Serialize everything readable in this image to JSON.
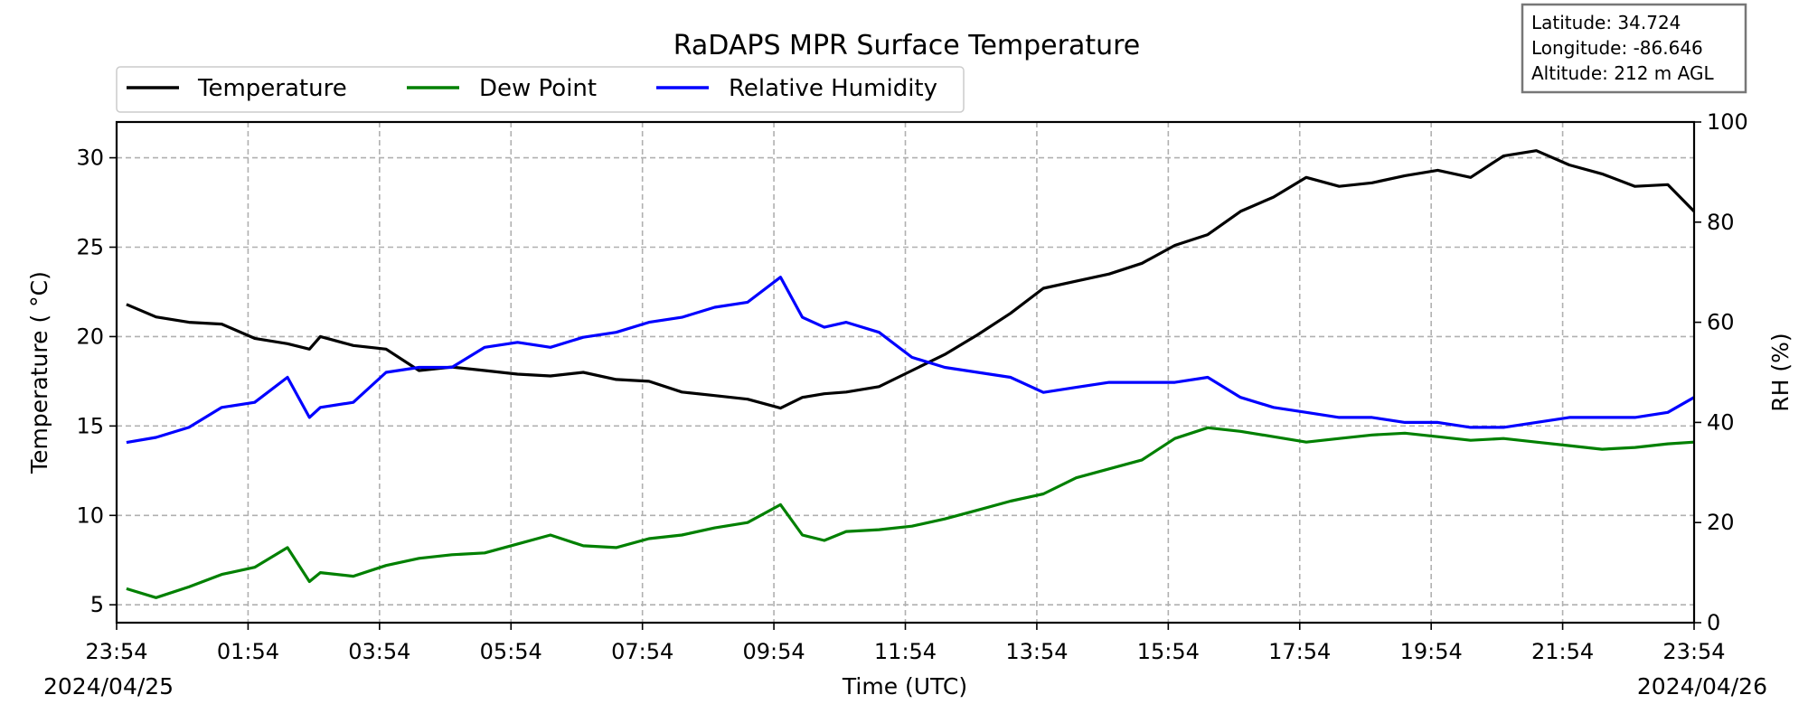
{
  "chart_data": {
    "type": "line",
    "title": "RaDAPS MPR Surface Temperature",
    "xlabel": "Time (UTC)",
    "ylabel_left": "Temperature (°C)",
    "ylabel_left_display": "Temperature ( °C)",
    "ylabel_right": "RH (%)",
    "x_range": [
      "2024-04-25 23:54",
      "2024-04-26 23:54"
    ],
    "x_ticks": [
      "23:54",
      "01:54",
      "03:54",
      "05:54",
      "07:54",
      "09:54",
      "11:54",
      "13:54",
      "15:54",
      "17:54",
      "19:54",
      "21:54",
      "23:54"
    ],
    "x_date_start": "2024/04/25",
    "x_date_end": "2024/04/26",
    "ylim_left": [
      4,
      32
    ],
    "yticks_left": [
      5,
      10,
      15,
      20,
      25,
      30
    ],
    "ylim_right": [
      0,
      100
    ],
    "yticks_right": [
      0,
      20,
      40,
      60,
      80,
      100
    ],
    "grid": true,
    "legend_placement": "top-left, above plot",
    "x": [
      "00:00",
      "00:30",
      "01:00",
      "01:30",
      "02:00",
      "02:30",
      "02:50",
      "03:00",
      "03:30",
      "04:00",
      "04:30",
      "05:00",
      "05:30",
      "06:00",
      "06:30",
      "07:00",
      "07:30",
      "08:00",
      "08:30",
      "09:00",
      "09:30",
      "10:00",
      "10:20",
      "10:40",
      "11:00",
      "11:30",
      "12:00",
      "12:30",
      "13:00",
      "13:30",
      "14:00",
      "14:30",
      "15:00",
      "15:30",
      "16:00",
      "16:30",
      "17:00",
      "17:30",
      "18:00",
      "18:30",
      "19:00",
      "19:30",
      "20:00",
      "20:30",
      "21:00",
      "21:30",
      "22:00",
      "22:30",
      "23:00",
      "23:30",
      "23:54"
    ],
    "series": [
      {
        "name": "Temperature",
        "axis": "left",
        "color": "#000000",
        "values": [
          21.8,
          21.1,
          20.8,
          20.7,
          19.9,
          19.6,
          19.3,
          20.0,
          19.5,
          19.3,
          18.1,
          18.3,
          18.1,
          17.9,
          17.8,
          18.0,
          17.6,
          17.5,
          16.9,
          16.7,
          16.5,
          16.0,
          16.6,
          16.8,
          16.9,
          17.2,
          18.1,
          19.0,
          20.1,
          21.3,
          22.7,
          23.1,
          23.5,
          24.1,
          25.1,
          25.7,
          27.0,
          27.8,
          28.9,
          28.4,
          28.6,
          29.0,
          29.3,
          28.9,
          30.1,
          30.4,
          29.6,
          29.1,
          28.4,
          28.5,
          27.0
        ]
      },
      {
        "name": "Dew Point",
        "axis": "left",
        "color": "#008000",
        "values": [
          5.9,
          5.4,
          6.0,
          6.7,
          7.1,
          8.2,
          6.3,
          6.8,
          6.6,
          7.2,
          7.6,
          7.8,
          7.9,
          8.4,
          8.9,
          8.3,
          8.2,
          8.7,
          8.9,
          9.3,
          9.6,
          10.6,
          8.9,
          8.6,
          9.1,
          9.2,
          9.4,
          9.8,
          10.3,
          10.8,
          11.2,
          12.1,
          12.6,
          13.1,
          14.3,
          14.9,
          14.7,
          14.4,
          14.1,
          14.3,
          14.5,
          14.6,
          14.4,
          14.2,
          14.3,
          14.1,
          13.9,
          13.7,
          13.8,
          14.0,
          14.1
        ]
      },
      {
        "name": "Relative Humidity",
        "axis": "right",
        "color": "#0000ff",
        "values": [
          36,
          37,
          39,
          43,
          44,
          49,
          41,
          43,
          44,
          50,
          51,
          51,
          55,
          56,
          55,
          57,
          58,
          60,
          61,
          63,
          64,
          69,
          61,
          59,
          60,
          58,
          53,
          51,
          50,
          49,
          46,
          47,
          48,
          48,
          48,
          49,
          45,
          43,
          42,
          41,
          41,
          40,
          40,
          39,
          39,
          40,
          41,
          41,
          41,
          42,
          45
        ]
      }
    ],
    "annotation": {
      "latitude": "Latitude: 34.724",
      "longitude": "Longitude: -86.646",
      "altitude": "Altitude: 212 m AGL"
    }
  }
}
